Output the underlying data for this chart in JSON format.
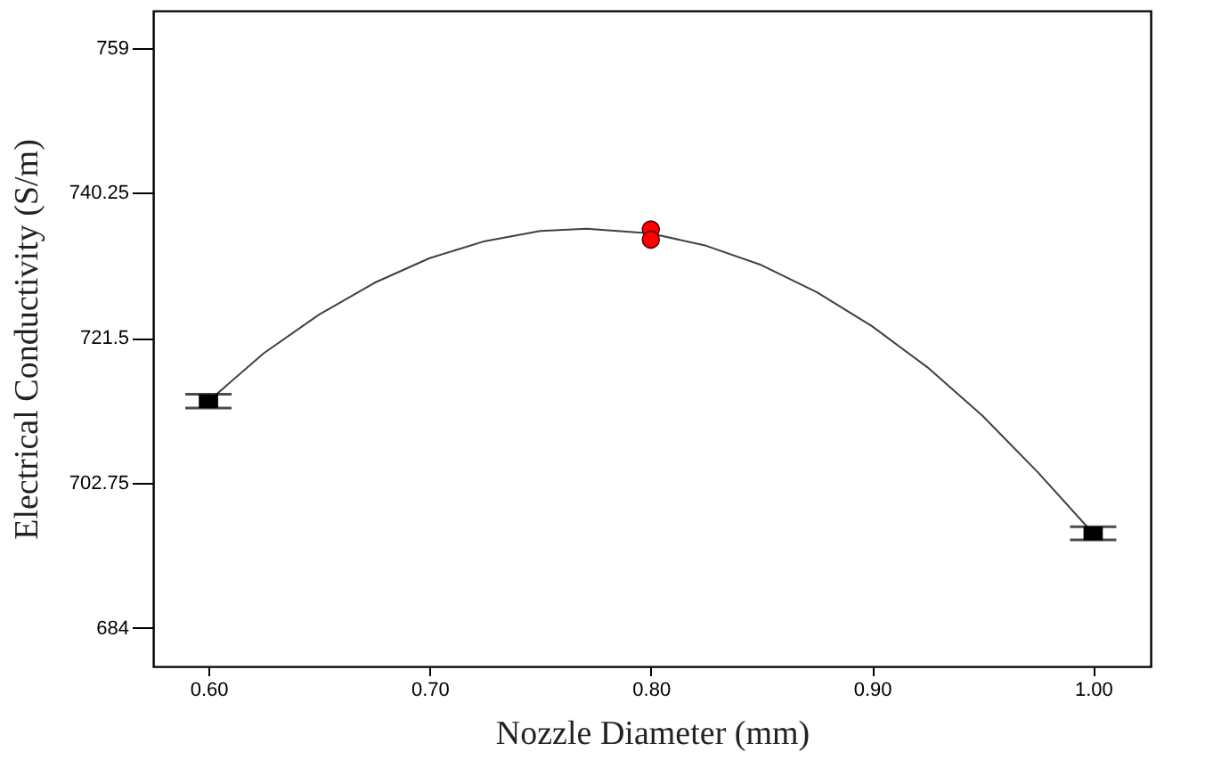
{
  "chart_data": {
    "type": "line",
    "xlabel": "Nozzle Diameter (mm)",
    "ylabel": "Electrical Conductivity (S/m)",
    "xlim": [
      0.575,
      1.026
    ],
    "ylim": [
      679.0,
      763.8
    ],
    "xticks": [
      {
        "value": 0.6,
        "label": "0.60"
      },
      {
        "value": 0.7,
        "label": "0.70"
      },
      {
        "value": 0.8,
        "label": "0.80"
      },
      {
        "value": 0.9,
        "label": "0.90"
      },
      {
        "value": 1.0,
        "label": "1.00"
      }
    ],
    "yticks": [
      684,
      702.75,
      721.5,
      740.25,
      759
    ],
    "grid": false,
    "series": [
      {
        "type": "line",
        "color": "#404040",
        "marker": "none",
        "x": [
          0.6,
          0.625,
          0.65,
          0.675,
          0.7,
          0.725,
          0.75,
          0.771,
          0.8,
          0.825,
          0.85,
          0.875,
          0.9,
          0.925,
          0.95,
          0.975,
          1.0
        ],
        "values": [
          713.3,
          719.5,
          724.5,
          728.6,
          731.8,
          734.0,
          735.3,
          735.6,
          735.0,
          733.4,
          730.9,
          727.4,
          723.0,
          717.7,
          711.4,
          704.1,
          696.2
        ]
      },
      {
        "type": "scatter",
        "color": "#000000",
        "marker": "square",
        "x": [
          0.6,
          1.0
        ],
        "values": [
          713.3,
          696.2
        ],
        "errors": [
          0.9,
          0.85
        ]
      },
      {
        "type": "scatter",
        "color": "#ff0000",
        "marker": "circle",
        "x": [
          0.8,
          0.8
        ],
        "values": [
          735.5,
          734.2
        ]
      }
    ]
  }
}
